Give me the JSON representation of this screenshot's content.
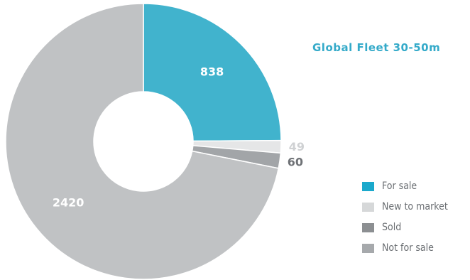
{
  "chart_data": {
    "type": "pie",
    "title": "Global Fleet 30-50m",
    "categories": [
      "For sale",
      "New to market",
      "Sold",
      "Not for sale"
    ],
    "values": [
      838,
      49,
      60,
      2420
    ],
    "colors": [
      "#41b3cd",
      "#e5e6e7",
      "#a2a5a8",
      "#c0c2c4"
    ],
    "legend_colors": [
      "#1ba9cc",
      "#d6d8d9",
      "#8c8f92",
      "#a6a9ac"
    ],
    "label_colors": [
      "#ffffff",
      "#cfd1d3",
      "#6f7276",
      "#ffffff"
    ],
    "donut": true,
    "legend_position": "right"
  }
}
